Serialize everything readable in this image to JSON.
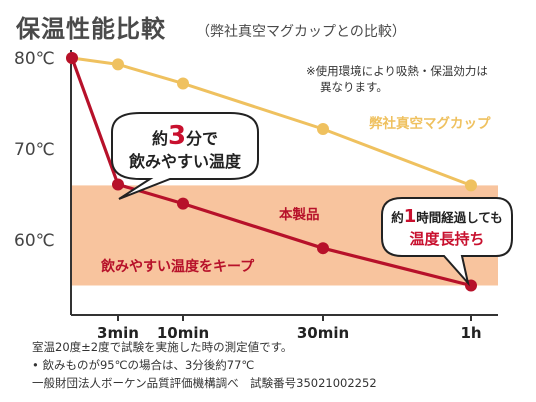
{
  "header": {
    "title": "保温性能比較",
    "subtitle": "（弊社真空マグカップとの比較）"
  },
  "notes": {
    "disclaimer_line1": "※使用環境により吸熱・保温効力は",
    "disclaimer_line2": "異なります。"
  },
  "annotations": {
    "bubble1_pre": "約",
    "bubble1_num": "3",
    "bubble1_post": "分で",
    "bubble1_line2": "飲みやすい温度",
    "bubble2_pre": "約",
    "bubble2_num": "1",
    "bubble2_post": "時間経過しても",
    "bubble2_line2": "温度長持ち",
    "zone_label": "飲みやすい温度をキープ"
  },
  "footer": {
    "line1": "室温20度±2度で試験を実施した時の測定値です。",
    "line2": "•  飲みものが95℃の場合は、3分後約77℃",
    "line3": "一般財団法人ボーケン品質評価機構調べ　試験番号35021002252"
  },
  "colors": {
    "product_line": "#b7112a",
    "mug_line": "#efc15f",
    "zone_fill": "#f8c49e",
    "axis": "#333333"
  },
  "chart_data": {
    "type": "line",
    "title": "保温性能比較",
    "subtitle": "（弊社真空マグカップとの比較）",
    "x_tick_labels": [
      "3min",
      "10min",
      "30min",
      "1h"
    ],
    "x_tick_minutes": [
      3,
      10,
      30,
      60
    ],
    "y_tick_labels": [
      "80℃",
      "70℃",
      "60℃"
    ],
    "y_tick_values": [
      80,
      70,
      60
    ],
    "ylim": [
      49,
      83
    ],
    "xlim": [
      0,
      60
    ],
    "comfortable_zone": {
      "label": "飲みやすい温度をキープ",
      "y_range": [
        55,
        66
      ]
    },
    "series": [
      {
        "name": "弊社真空マグカップ",
        "color": "#efc15f",
        "x": [
          0,
          3,
          10,
          30,
          60
        ],
        "y": [
          80,
          79.3,
          77.2,
          72.2,
          66
        ]
      },
      {
        "name": "本製品",
        "color": "#b7112a",
        "x": [
          0,
          3,
          10,
          30,
          60
        ],
        "y": [
          80,
          66.1,
          64,
          59.1,
          55
        ]
      }
    ]
  }
}
